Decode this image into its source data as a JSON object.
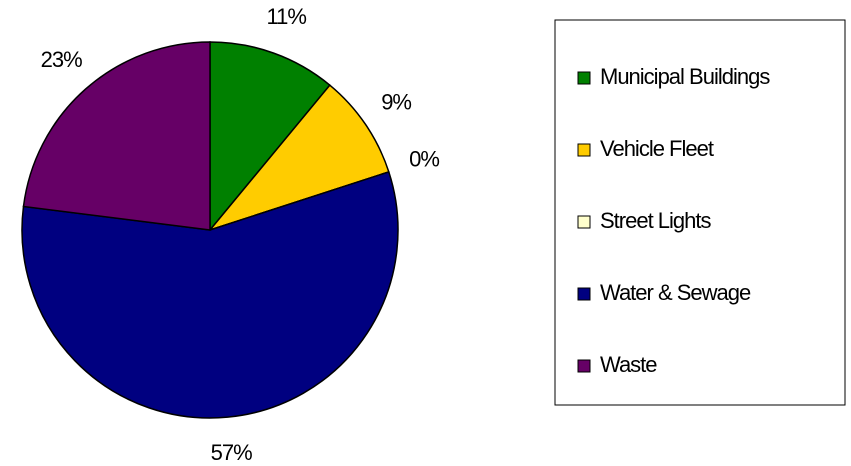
{
  "chart_data": {
    "type": "pie",
    "categories": [
      "Municipal Buildings",
      "Vehicle Fleet",
      "Street Lights",
      "Water & Sewage",
      "Waste"
    ],
    "values": [
      11,
      9,
      0,
      57,
      23
    ],
    "value_labels": [
      "11%",
      "9%",
      "0%",
      "57%",
      "23%"
    ],
    "colors": [
      "#008000",
      "#ffcc00",
      "#ffffcc",
      "#000080",
      "#660066"
    ],
    "legend": "right"
  }
}
